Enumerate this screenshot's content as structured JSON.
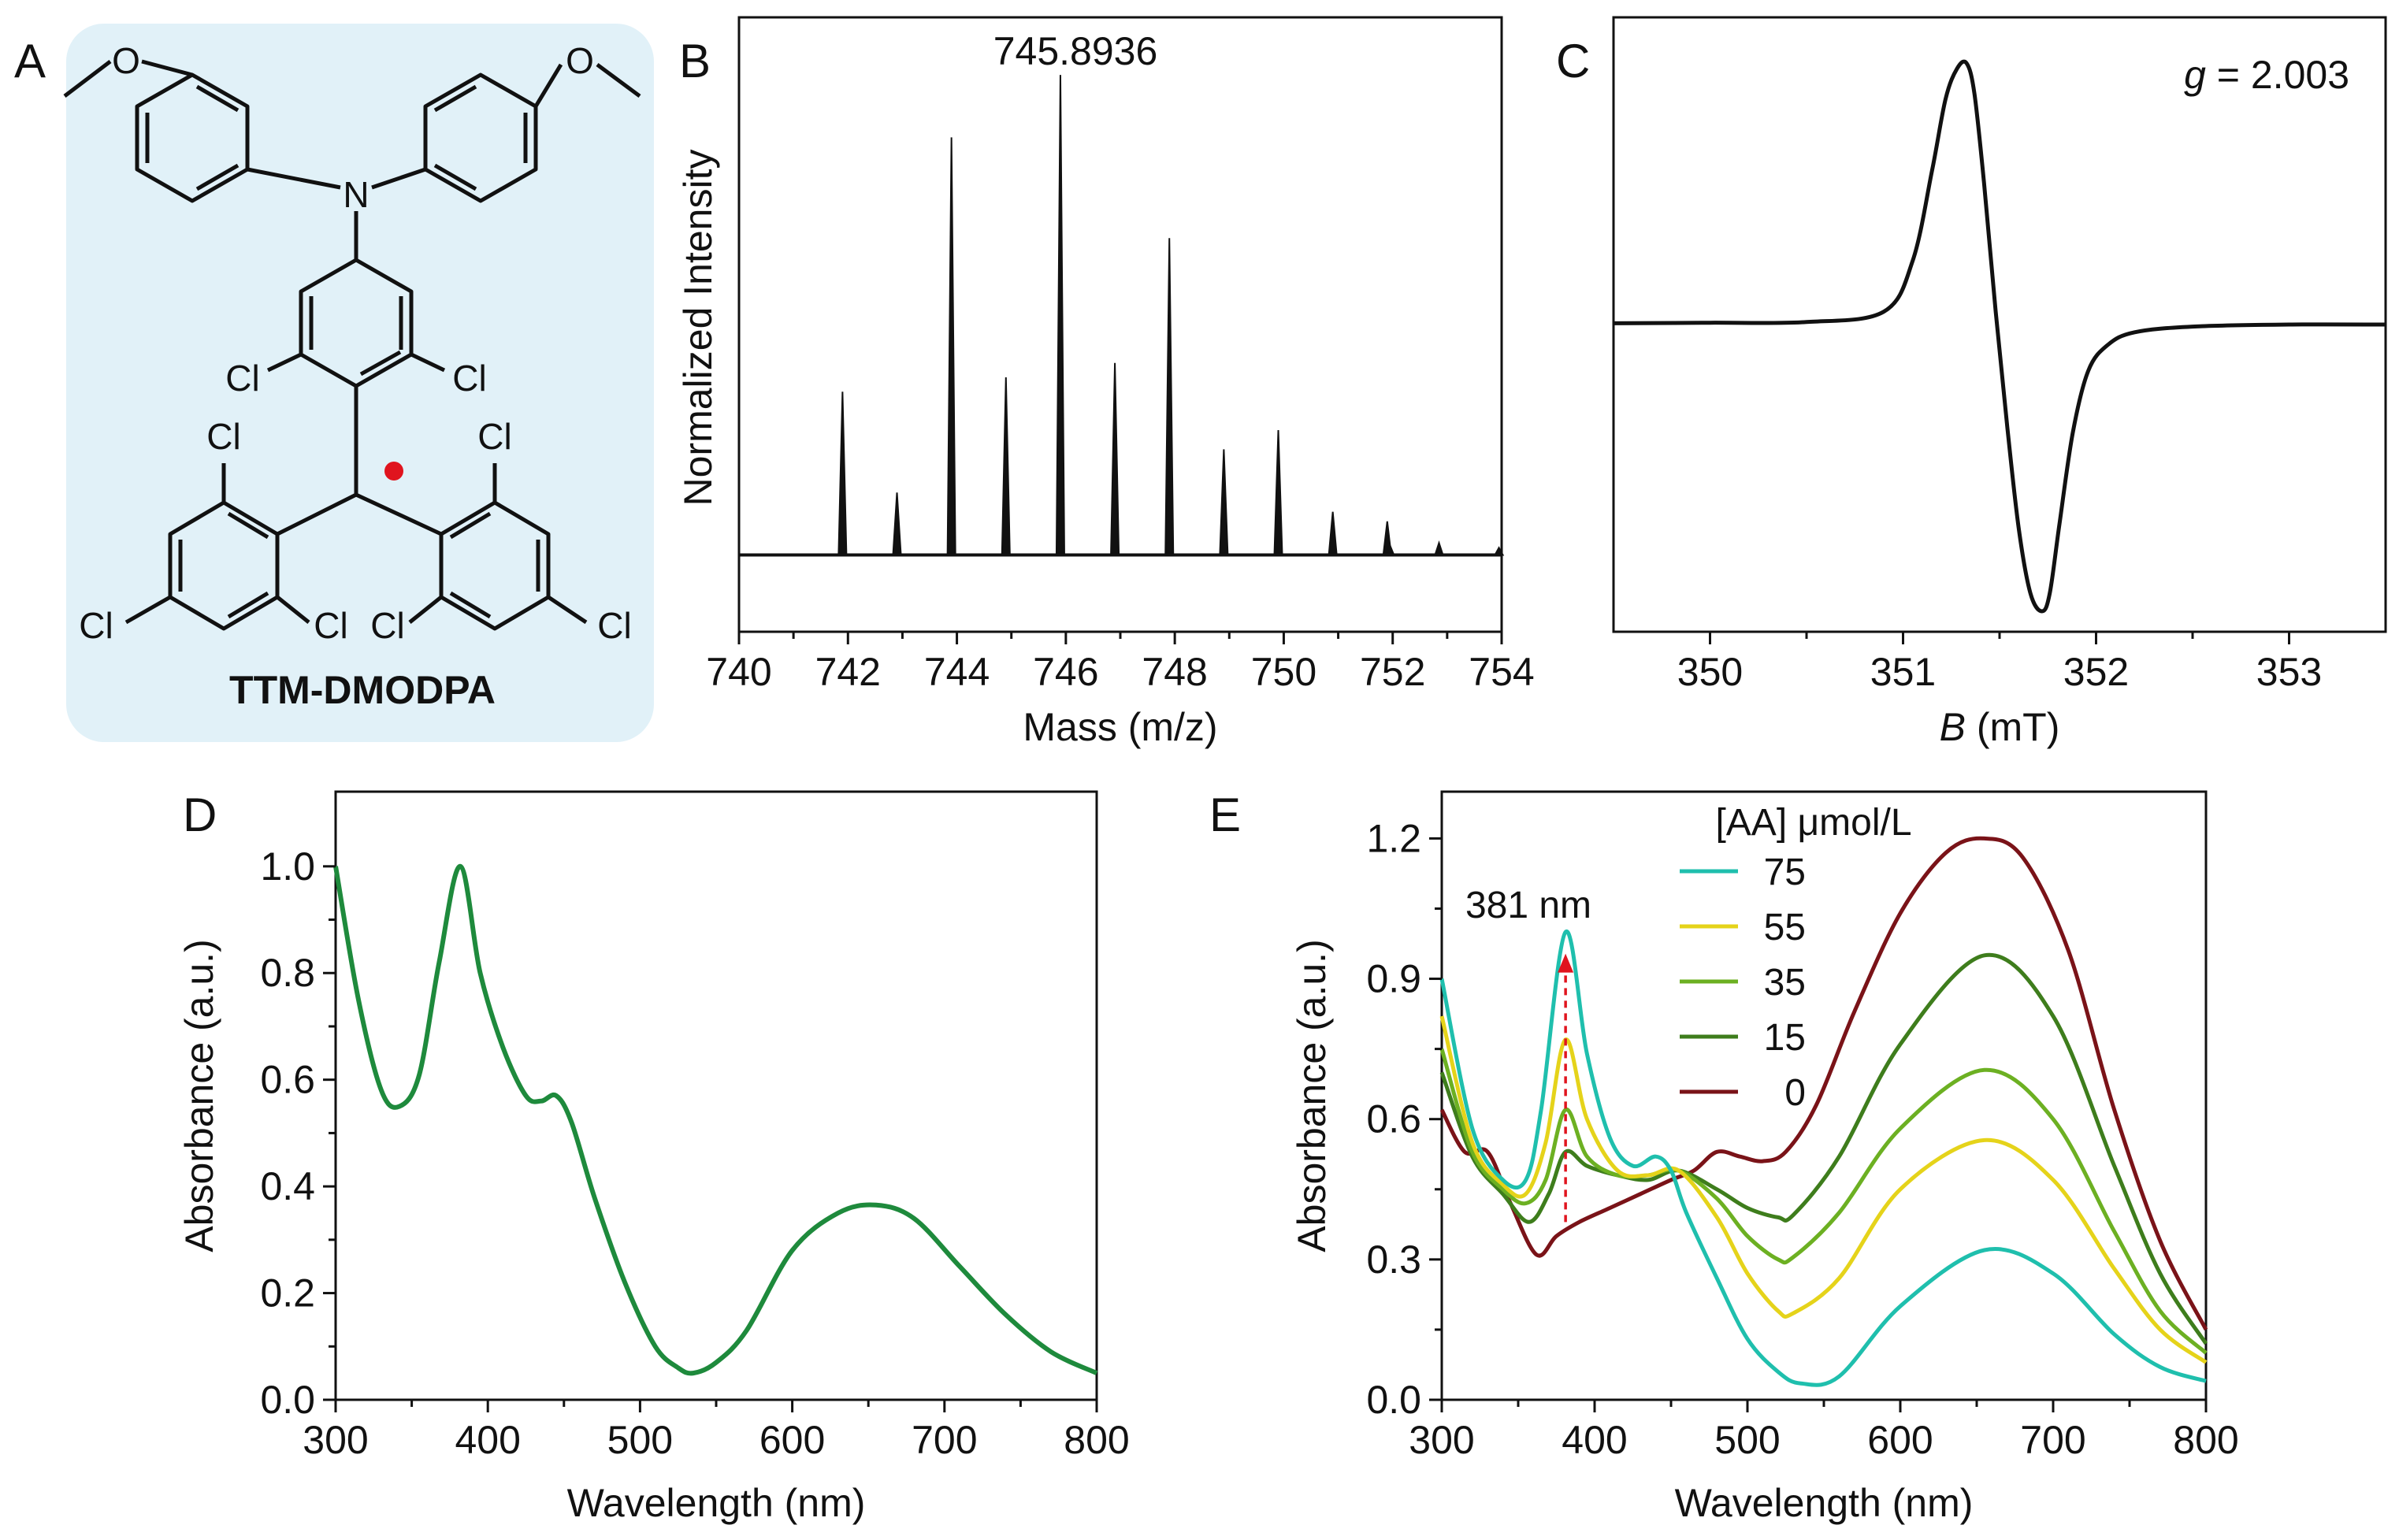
{
  "panels": {
    "A": {
      "letter": "A",
      "compound_name": "TTM-DMODPA",
      "atom_labels": [
        "N",
        "Cl",
        "Cl",
        "Cl",
        "Cl",
        "Cl",
        "Cl",
        "Cl",
        "Cl"
      ],
      "background_color": "#e1f1f8",
      "radical_color": "#e0141e"
    },
    "B": {
      "letter": "B"
    },
    "C": {
      "letter": "C"
    },
    "D": {
      "letter": "D"
    },
    "E": {
      "letter": "E"
    }
  },
  "chart_data": [
    {
      "id": "B",
      "type": "bar",
      "subtype": "mass-spectrum",
      "xlabel": "Mass (m/z)",
      "ylabel": "Normalized Intensity",
      "xlim": [
        740,
        754
      ],
      "ylim": [
        -0.16,
        1.12
      ],
      "xticks": [
        "740",
        "742",
        "744",
        "746",
        "748",
        "750",
        "752",
        "754"
      ],
      "annotation": "745.8936",
      "x": [
        741.9,
        742.9,
        743.9,
        744.9,
        745.9,
        746.9,
        747.9,
        748.9,
        749.9,
        750.9,
        751.9,
        751.95,
        752.85,
        753.95
      ],
      "values": [
        0.34,
        0.13,
        0.87,
        0.37,
        1.0,
        0.4,
        0.66,
        0.22,
        0.26,
        0.09,
        0.07,
        0.02,
        0.025,
        0.015
      ],
      "color": "#111111"
    },
    {
      "id": "C",
      "type": "line",
      "subtype": "EPR",
      "xlabel_italic": "B",
      "xlabel_rest": " (mT)",
      "xlim": [
        349.5,
        353.5
      ],
      "ylim": [
        -1.2,
        1.2
      ],
      "xticks": [
        "350",
        "351",
        "352",
        "353"
      ],
      "annotation_italic": "g",
      "annotation_rest": " = 2.003",
      "series": [
        {
          "name": "EPR signal",
          "color": "#111111",
          "x": [
            349.5,
            350.0,
            350.5,
            350.9,
            351.05,
            351.15,
            351.22,
            351.28,
            351.33,
            351.37,
            351.42,
            351.48,
            351.54,
            351.6,
            351.66,
            351.72,
            351.76,
            351.81,
            351.88,
            351.96,
            352.06,
            352.2,
            352.5,
            353.0,
            353.5
          ],
          "y": [
            0.005,
            0.007,
            0.01,
            0.05,
            0.25,
            0.6,
            0.88,
            1.0,
            1.02,
            0.9,
            0.55,
            0.05,
            -0.4,
            -0.8,
            -1.05,
            -1.12,
            -1.05,
            -0.78,
            -0.42,
            -0.18,
            -0.08,
            -0.03,
            -0.008,
            0.0,
            0.0
          ]
        }
      ]
    },
    {
      "id": "D",
      "type": "line",
      "xlabel": "Wavelength (nm)",
      "ylabel": "Absorbance (a.u.)",
      "xlim": [
        300,
        800
      ],
      "ylim": [
        0,
        1.14
      ],
      "xticks": [
        "300",
        "400",
        "500",
        "600",
        "700",
        "800"
      ],
      "yticks": [
        "0.0",
        "0.2",
        "0.4",
        "0.6",
        "0.8",
        "1.0"
      ],
      "series": [
        {
          "name": "TTM-DMODPA",
          "color": "#1e8a3c",
          "x": [
            300,
            315,
            330,
            342,
            355,
            368,
            382,
            395,
            410,
            425,
            435,
            445,
            455,
            470,
            490,
            510,
            525,
            535,
            550,
            570,
            600,
            630,
            655,
            680,
            710,
            740,
            770,
            800
          ],
          "y": [
            1.0,
            0.75,
            0.58,
            0.55,
            0.61,
            0.82,
            1.0,
            0.8,
            0.66,
            0.57,
            0.56,
            0.57,
            0.52,
            0.38,
            0.22,
            0.1,
            0.06,
            0.05,
            0.07,
            0.13,
            0.28,
            0.35,
            0.365,
            0.34,
            0.25,
            0.16,
            0.09,
            0.05
          ]
        }
      ]
    },
    {
      "id": "E",
      "type": "line",
      "xlabel": "Wavelength (nm)",
      "ylabel": "Absorbance (a.u.)",
      "xlim": [
        300,
        800
      ],
      "ylim": [
        0,
        1.3
      ],
      "xticks": [
        "300",
        "400",
        "500",
        "600",
        "700",
        "800"
      ],
      "yticks": [
        "0.0",
        "0.3",
        "0.6",
        "0.9",
        "1.2"
      ],
      "legend_title": "[AA] μmol/L",
      "legend_position": "top-center",
      "annotation": "381 nm",
      "annotation_arrow_color": "#e0141e",
      "series": [
        {
          "name": "75",
          "color": "#1fbfad",
          "x": [
            300,
            320,
            340,
            355,
            365,
            381,
            395,
            410,
            425,
            440,
            450,
            460,
            480,
            500,
            520,
            535,
            560,
            600,
            655,
            700,
            740,
            770,
            800
          ],
          "y": [
            0.9,
            0.58,
            0.47,
            0.47,
            0.62,
            1.0,
            0.74,
            0.56,
            0.5,
            0.52,
            0.49,
            0.4,
            0.26,
            0.13,
            0.06,
            0.035,
            0.05,
            0.2,
            0.32,
            0.27,
            0.14,
            0.07,
            0.04
          ]
        },
        {
          "name": "55",
          "color": "#e5d31a",
          "x": [
            300,
            320,
            340,
            355,
            368,
            381,
            395,
            415,
            435,
            455,
            480,
            500,
            520,
            530,
            560,
            600,
            655,
            700,
            740,
            770,
            800
          ],
          "y": [
            0.82,
            0.55,
            0.46,
            0.44,
            0.55,
            0.77,
            0.6,
            0.49,
            0.48,
            0.49,
            0.39,
            0.27,
            0.19,
            0.185,
            0.26,
            0.45,
            0.555,
            0.47,
            0.28,
            0.15,
            0.08
          ]
        },
        {
          "name": "35",
          "color": "#6cb022",
          "x": [
            300,
            320,
            340,
            355,
            368,
            381,
            395,
            415,
            435,
            455,
            480,
            500,
            520,
            530,
            560,
            600,
            655,
            700,
            740,
            770,
            800
          ],
          "y": [
            0.75,
            0.53,
            0.45,
            0.42,
            0.47,
            0.62,
            0.52,
            0.48,
            0.48,
            0.49,
            0.43,
            0.35,
            0.3,
            0.305,
            0.4,
            0.58,
            0.705,
            0.6,
            0.36,
            0.19,
            0.1
          ]
        },
        {
          "name": "15",
          "color": "#3e7d1c",
          "x": [
            300,
            320,
            340,
            357,
            370,
            381,
            395,
            415,
            435,
            455,
            480,
            500,
            520,
            530,
            560,
            600,
            655,
            700,
            740,
            770,
            800
          ],
          "y": [
            0.7,
            0.52,
            0.44,
            0.38,
            0.44,
            0.53,
            0.5,
            0.48,
            0.47,
            0.49,
            0.45,
            0.41,
            0.39,
            0.395,
            0.52,
            0.76,
            0.95,
            0.82,
            0.5,
            0.27,
            0.12
          ]
        },
        {
          "name": "0",
          "color": "#7a1318",
          "x": [
            300,
            315,
            330,
            345,
            362,
            375,
            390,
            410,
            430,
            450,
            465,
            480,
            495,
            510,
            525,
            545,
            570,
            600,
            630,
            655,
            680,
            710,
            740,
            770,
            800
          ],
          "y": [
            0.62,
            0.53,
            0.53,
            0.42,
            0.31,
            0.35,
            0.38,
            0.41,
            0.44,
            0.47,
            0.49,
            0.53,
            0.52,
            0.51,
            0.53,
            0.63,
            0.83,
            1.04,
            1.17,
            1.2,
            1.16,
            0.96,
            0.62,
            0.34,
            0.15
          ]
        }
      ]
    }
  ]
}
